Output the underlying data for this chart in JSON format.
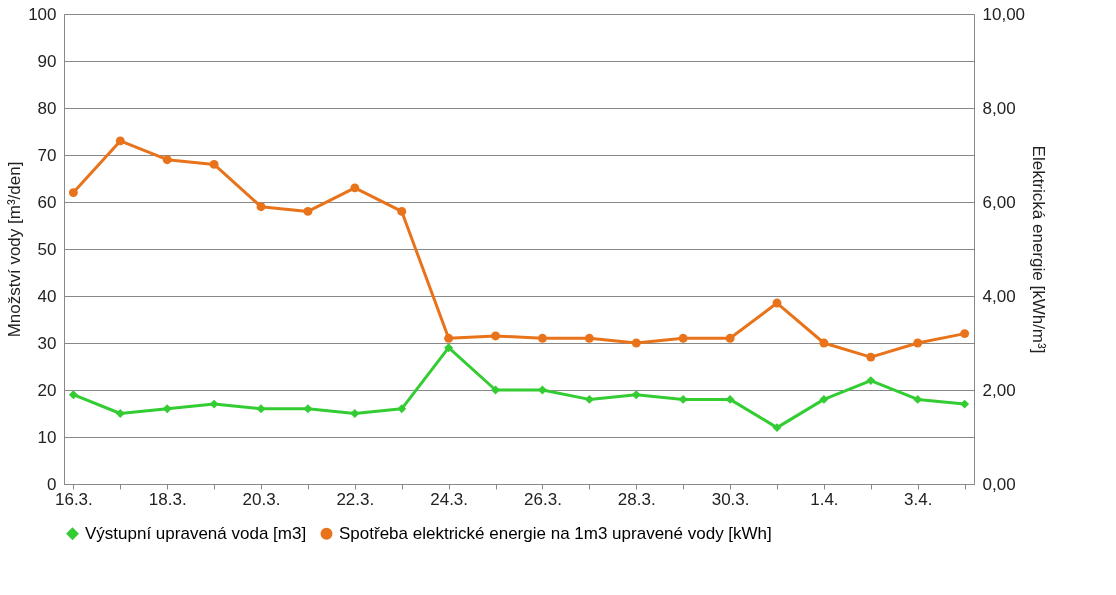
{
  "chart_data": {
    "type": "line",
    "categories": [
      "16.3.",
      null,
      "18.3.",
      null,
      "20.3.",
      null,
      "22.3.",
      null,
      "24.3.",
      null,
      "26.3.",
      null,
      "28.3.",
      null,
      "30.3.",
      null,
      "1.4.",
      null,
      "3.4.",
      null
    ],
    "ylabel": "Množství vody [m³/den]",
    "y2label": "Elektrická energie [kWh/m³]",
    "ylim": [
      0,
      100
    ],
    "yticks": [
      0,
      10,
      20,
      30,
      40,
      50,
      60,
      70,
      80,
      90,
      100
    ],
    "y2lim": [
      0,
      10
    ],
    "y2ticks": [
      {
        "value": 0,
        "label": "0,00"
      },
      {
        "value": 2,
        "label": "2,00"
      },
      {
        "value": 4,
        "label": "4,00"
      },
      {
        "value": 6,
        "label": "6,00"
      },
      {
        "value": 8,
        "label": "8,00"
      },
      {
        "value": 10,
        "label": "10,00"
      }
    ],
    "grid": "y",
    "legend": "bottom",
    "series": [
      {
        "name": "Výstupní upravená voda [m3]",
        "color": "#33cc33",
        "marker": "diamond",
        "values": [
          19,
          15,
          16,
          17,
          16,
          16,
          15,
          16,
          29,
          20,
          20,
          18,
          19,
          18,
          18,
          12,
          18,
          22,
          18,
          17
        ]
      },
      {
        "name": "Spotřeba elektrické energie na 1m3 upravené vody [kWh]",
        "color": "#e8731a",
        "marker": "circle",
        "axis": "y2",
        "values": [
          6.2,
          7.3,
          6.9,
          6.8,
          5.9,
          5.8,
          6.3,
          5.8,
          3.1,
          3.15,
          3.1,
          3.1,
          3.0,
          3.1,
          3.1,
          3.85,
          3.0,
          2.7,
          3.0,
          3.2
        ]
      }
    ]
  }
}
